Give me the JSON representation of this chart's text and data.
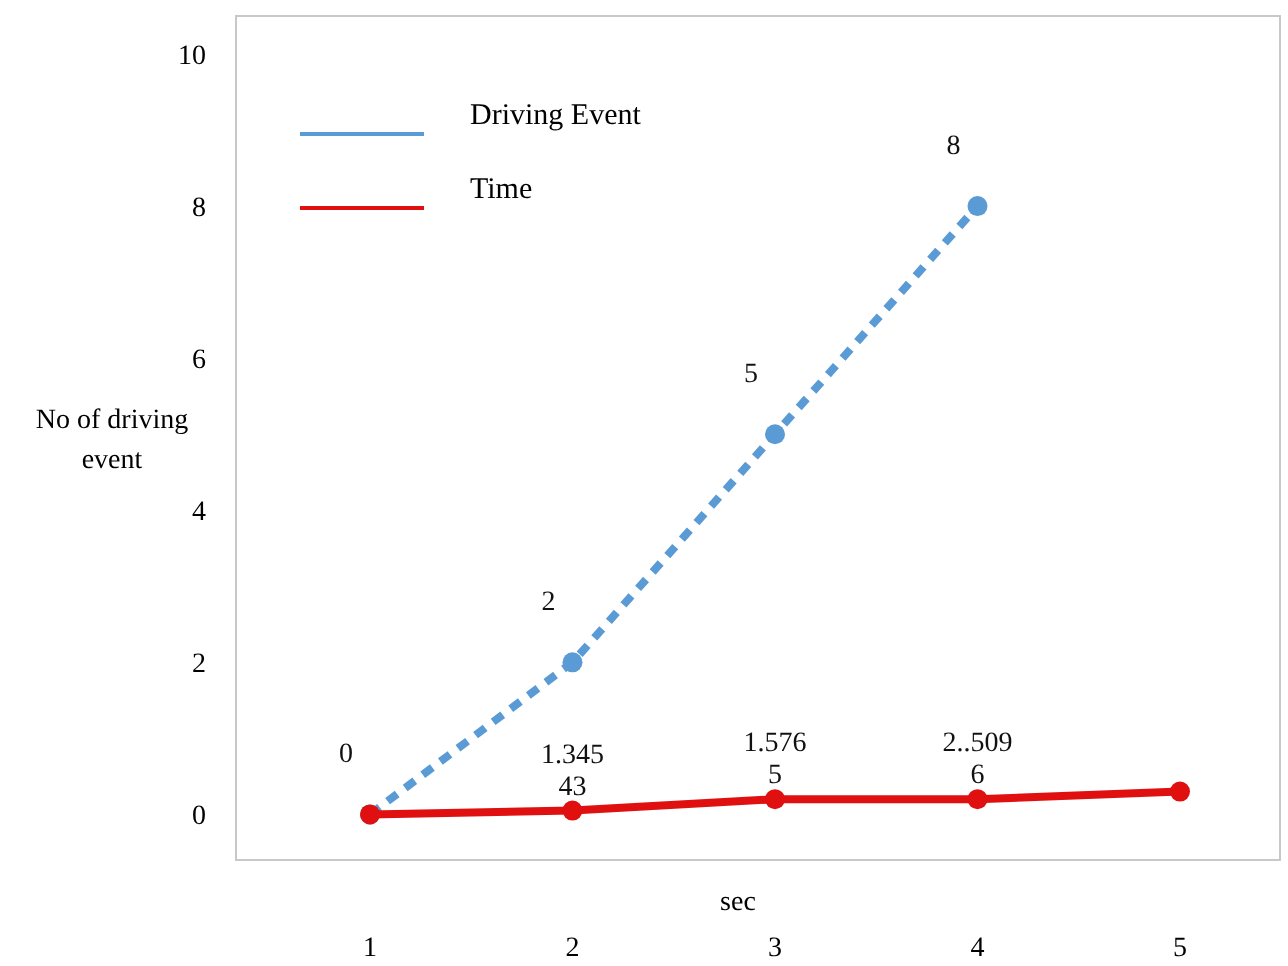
{
  "chart_data": {
    "type": "line",
    "xlabel": "sec",
    "ylabel": "No of driving\nevent",
    "categories": [
      "1",
      "2",
      "3",
      "4",
      "5"
    ],
    "ylim": [
      -0.6,
      10.5
    ],
    "yticks": [
      0,
      2,
      4,
      6,
      8,
      10
    ],
    "grid": false,
    "legend": "top left",
    "marker": "circle",
    "series": [
      {
        "name": "Driving Event",
        "color": "#5b9bd5",
        "line_style": "dashed",
        "values": [
          0,
          2,
          5,
          8,
          null
        ],
        "value_labels": [
          "0",
          "2",
          "5",
          "8",
          null
        ]
      },
      {
        "name": "Time",
        "color": "#e01010",
        "line_style": "solid",
        "values": [
          0,
          0.05,
          0.2,
          0.2,
          0.3
        ]
      }
    ],
    "annotations": [
      "1.345\n43",
      "1.576\n5",
      "2..509\n6"
    ]
  }
}
